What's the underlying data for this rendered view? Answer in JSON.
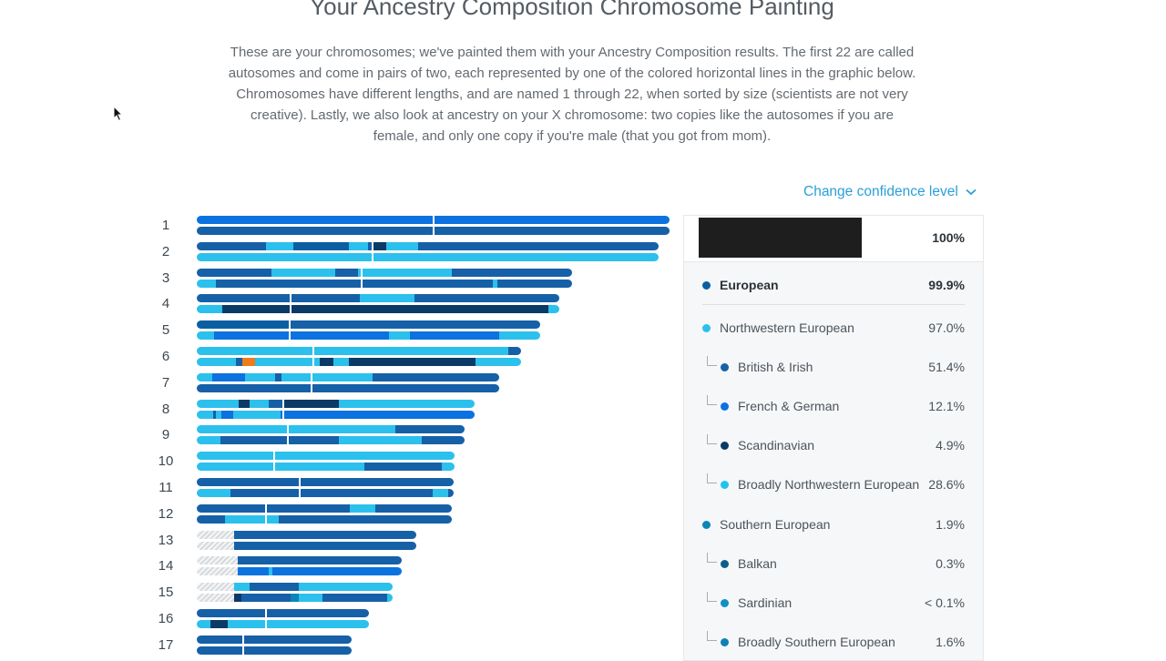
{
  "page": {
    "title": "Your Ancestry Composition Chromosome Painting",
    "intro": "These are your chromosomes; we've painted them with your Ancestry Composition results. The first 22 are called autosomes and come in pairs of two, each represented by one of the colored horizontal lines in the graphic below. Chromosomes have different lengths, and are named 1 through 22, when sorted by size (scientists are not very creative). Lastly, we also look at ancestry on your X chromosome: two copies like the autosomes if you are female, and only one copy if you're male (that you got from mom).",
    "confidence_label": "Change confidence level"
  },
  "colors": {
    "european": "#0a5fa3",
    "northwestern": "#2cc0ec",
    "british_irish": "#1660a8",
    "french_german": "#0b72e0",
    "scandinavian": "#0c3a66",
    "broadly_nw": "#1fc3f0",
    "southern": "#0b86b7",
    "balkan": "#0d5c8c",
    "sardinian": "#0f8fc4",
    "broadly_southern": "#0f80b5",
    "other": "#f07b1a"
  },
  "legend": {
    "total": "100%",
    "rows": [
      {
        "name": "European",
        "pct": "99.9%",
        "level": 0,
        "bold": true,
        "color": "european"
      },
      {
        "name": "Northwestern European",
        "pct": "97.0%",
        "level": 1,
        "bold": false,
        "color": "northwestern"
      },
      {
        "name": "British & Irish",
        "pct": "51.4%",
        "level": 2,
        "bold": false,
        "color": "british_irish"
      },
      {
        "name": "French & German",
        "pct": "12.1%",
        "level": 2,
        "bold": false,
        "color": "french_german"
      },
      {
        "name": "Scandinavian",
        "pct": "4.9%",
        "level": 2,
        "bold": false,
        "color": "scandinavian"
      },
      {
        "name": "Broadly Northwestern European",
        "pct": "28.6%",
        "level": 2,
        "bold": false,
        "color": "broadly_nw"
      },
      {
        "name": "Southern European",
        "pct": "1.9%",
        "level": 1,
        "bold": false,
        "color": "southern"
      },
      {
        "name": "Balkan",
        "pct": "0.3%",
        "level": 2,
        "bold": false,
        "color": "balkan"
      },
      {
        "name": "Sardinian",
        "pct": "< 0.1%",
        "level": 2,
        "bold": false,
        "color": "sardinian"
      },
      {
        "name": "Broadly Southern European",
        "pct": "1.6%",
        "level": 2,
        "bold": false,
        "color": "broadly_southern"
      }
    ]
  },
  "chromosomes": [
    {
      "label": "1",
      "a": [
        [
          "FG",
          1
        ]
      ],
      "b": [
        [
          "BI",
          1
        ]
      ]
    },
    {
      "label": "2",
      "a": [
        [
          "BI",
          0.15
        ],
        [
          "NW",
          0.21
        ],
        [
          "EU",
          0.33
        ],
        [
          "NW",
          0.37
        ],
        [
          "BI",
          0.38
        ],
        [
          "SC",
          0.41
        ],
        [
          "NW",
          0.48
        ],
        [
          "BI",
          1
        ]
      ],
      "b": [
        [
          "NW",
          1
        ]
      ]
    },
    {
      "label": "3",
      "a": [
        [
          "BI",
          0.2
        ],
        [
          "NW",
          0.37
        ],
        [
          "BI",
          0.43
        ],
        [
          "NW",
          0.46
        ],
        [
          "NW",
          0.68
        ],
        [
          "BI",
          1
        ]
      ],
      "b": [
        [
          "NW",
          0.05
        ],
        [
          "BI",
          0.47
        ],
        [
          "BI",
          0.79
        ],
        [
          "NW",
          0.8
        ],
        [
          "BI",
          1
        ]
      ]
    },
    {
      "label": "4",
      "a": [
        [
          "BI",
          0.26
        ],
        [
          "BI",
          0.45
        ],
        [
          "NW",
          0.6
        ],
        [
          "BI",
          1
        ]
      ],
      "b": [
        [
          "NW",
          0.03
        ],
        [
          "NW",
          0.07
        ],
        [
          "SC",
          0.26
        ],
        [
          "SC",
          0.97
        ],
        [
          "NW",
          1
        ]
      ]
    },
    {
      "label": "5",
      "a": [
        [
          "EU",
          0.27
        ],
        [
          "BI",
          1
        ]
      ],
      "b": [
        [
          "NW",
          0.05
        ],
        [
          "FG",
          0.27
        ],
        [
          "FG",
          0.56
        ],
        [
          "NW",
          0.62
        ],
        [
          "FG",
          0.88
        ],
        [
          "NW",
          1
        ]
      ]
    },
    {
      "label": "6",
      "a": [
        [
          "NW",
          0.36
        ],
        [
          "NW",
          0.96
        ],
        [
          "BI",
          1
        ]
      ],
      "b": [
        [
          "NW",
          0.12
        ],
        [
          "BI",
          0.14
        ],
        [
          "OT",
          0.18
        ],
        [
          "NW",
          0.35
        ],
        [
          "NW",
          0.38
        ],
        [
          "SC",
          0.42
        ],
        [
          "NW",
          0.47
        ],
        [
          "SC",
          0.86
        ],
        [
          "NW",
          1
        ]
      ]
    },
    {
      "label": "7",
      "a": [
        [
          "NW",
          0.05
        ],
        [
          "FG",
          0.16
        ],
        [
          "NW",
          0.26
        ],
        [
          "BI",
          0.28
        ],
        [
          "NW",
          0.3
        ],
        [
          "NW",
          0.58
        ],
        [
          "BI",
          1
        ]
      ],
      "b": [
        [
          "BI",
          0.38
        ],
        [
          "BI",
          1
        ]
      ]
    },
    {
      "label": "8",
      "a": [
        [
          "NW",
          0.15
        ],
        [
          "SC",
          0.19
        ],
        [
          "NW",
          0.26
        ],
        [
          "BI",
          0.31
        ],
        [
          "SC",
          0.51
        ],
        [
          "NW",
          1
        ]
      ],
      "b": [
        [
          "NW",
          0.06
        ],
        [
          "BI",
          0.07
        ],
        [
          "NW",
          0.09
        ],
        [
          "FG",
          0.13
        ],
        [
          "NW",
          0.3
        ],
        [
          "FG",
          1
        ]
      ]
    },
    {
      "label": "9",
      "a": [
        [
          "NW",
          0.34
        ],
        [
          "NW",
          0.74
        ],
        [
          "BI",
          1
        ]
      ],
      "b": [
        [
          "NW",
          0.09
        ],
        [
          "BI",
          0.34
        ],
        [
          "BI",
          0.53
        ],
        [
          "NW",
          0.84
        ],
        [
          "BI",
          1
        ]
      ]
    },
    {
      "label": "10",
      "a": [
        [
          "NW",
          0.3
        ],
        [
          "NW",
          1
        ]
      ],
      "b": [
        [
          "NW",
          0.3
        ],
        [
          "NW",
          0.65
        ],
        [
          "BI",
          0.95
        ],
        [
          "NW",
          1
        ]
      ]
    },
    {
      "label": "11",
      "a": [
        [
          "BI",
          0.4
        ],
        [
          "BI",
          1
        ]
      ],
      "b": [
        [
          "NW",
          0.13
        ],
        [
          "BI",
          0.4
        ],
        [
          "BI",
          0.92
        ],
        [
          "NW",
          0.98
        ],
        [
          "BI",
          1
        ]
      ]
    },
    {
      "label": "12",
      "a": [
        [
          "BI",
          0.27
        ],
        [
          "BI",
          0.6
        ],
        [
          "NW",
          0.7
        ],
        [
          "BI",
          1
        ]
      ],
      "b": [
        [
          "BI",
          0.11
        ],
        [
          "NW",
          0.26
        ],
        [
          "NW",
          0.32
        ],
        [
          "BI",
          1
        ]
      ]
    },
    {
      "label": "13",
      "a": [
        [
          "ND",
          0.17
        ],
        [
          "BI",
          1
        ]
      ],
      "b": [
        [
          "ND",
          0.17
        ],
        [
          "BI",
          1
        ]
      ]
    },
    {
      "label": "14",
      "a": [
        [
          "ND",
          0.2
        ],
        [
          "BI",
          1
        ]
      ],
      "b": [
        [
          "ND",
          0.2
        ],
        [
          "FG",
          0.35
        ],
        [
          "NW",
          0.37
        ],
        [
          "FG",
          1
        ]
      ]
    },
    {
      "label": "15",
      "a": [
        [
          "ND",
          0.19
        ],
        [
          "NW",
          0.27
        ],
        [
          "BI",
          0.52
        ],
        [
          "NW",
          1
        ]
      ],
      "b": [
        [
          "ND",
          0.19
        ],
        [
          "SC",
          0.23
        ],
        [
          "BI",
          0.48
        ],
        [
          "SE",
          0.52
        ],
        [
          "NW",
          0.64
        ],
        [
          "BI",
          0.97
        ],
        [
          "NW",
          1
        ]
      ]
    },
    {
      "label": "16",
      "a": [
        [
          "BI",
          0.4
        ],
        [
          "BI",
          1
        ]
      ],
      "b": [
        [
          "NW",
          0.08
        ],
        [
          "SC",
          0.18
        ],
        [
          "NW",
          0.4
        ],
        [
          "NW",
          1
        ]
      ]
    },
    {
      "label": "17",
      "a": [
        [
          "BI",
          0.3
        ],
        [
          "BI",
          1
        ]
      ],
      "b": [
        [
          "BI",
          0.3
        ],
        [
          "BI",
          1
        ]
      ]
    }
  ]
}
